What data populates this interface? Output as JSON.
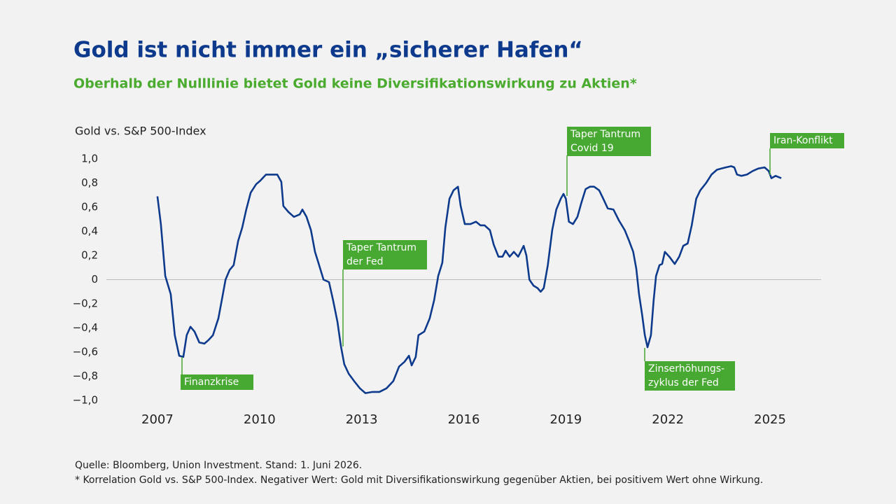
{
  "chart_data": {
    "type": "line",
    "title": "Gold ist nicht immer ein „sicherer Hafen“",
    "subtitle": "Oberhalb der Nulllinie bietet Gold keine Diversifikationswirkung zu Aktien*",
    "y_label": "Gold vs. S&P 500-Index",
    "color": "#0d3a8c",
    "zero_line": true,
    "xlim": [
      2005.5,
      2026.5
    ],
    "xticks": [
      2007,
      2010,
      2013,
      2016,
      2019,
      2022,
      2025
    ],
    "ylim": [
      -1.0,
      1.0
    ],
    "yticks": [
      {
        "value": 1.0,
        "label": "1,0"
      },
      {
        "value": 0.8,
        "label": "0,8"
      },
      {
        "value": 0.6,
        "label": "0,6"
      },
      {
        "value": 0.4,
        "label": "0,4"
      },
      {
        "value": 0.2,
        "label": "0,2"
      },
      0,
      {
        "value": -0.2,
        "label": "−0,2"
      },
      {
        "value": -0.4,
        "label": "−0,4"
      },
      {
        "value": -0.6,
        "label": "−0,6"
      },
      {
        "value": -0.8,
        "label": "−0,8"
      },
      {
        "value": -1.0,
        "label": "−1,0"
      }
    ],
    "x": [
      2007.0,
      2007.1,
      2007.23,
      2007.39,
      2007.51,
      2007.64,
      2007.76,
      2007.86,
      2007.97,
      2008.09,
      2008.23,
      2008.38,
      2008.5,
      2008.63,
      2008.79,
      2008.91,
      2009.0,
      2009.12,
      2009.24,
      2009.37,
      2009.49,
      2009.61,
      2009.74,
      2009.9,
      2010.02,
      2010.19,
      2010.35,
      2010.52,
      2010.64,
      2010.7,
      2010.85,
      2011.01,
      2011.18,
      2011.26,
      2011.38,
      2011.51,
      2011.63,
      2011.75,
      2011.88,
      2012.04,
      2012.16,
      2012.29,
      2012.39,
      2012.49,
      2012.62,
      2012.78,
      2012.95,
      2013.11,
      2013.32,
      2013.52,
      2013.73,
      2013.93,
      2014.1,
      2014.26,
      2014.39,
      2014.47,
      2014.59,
      2014.67,
      2014.84,
      2015.0,
      2015.13,
      2015.25,
      2015.37,
      2015.46,
      2015.58,
      2015.7,
      2015.83,
      2015.91,
      2016.03,
      2016.2,
      2016.36,
      2016.49,
      2016.61,
      2016.77,
      2016.88,
      2017.02,
      2017.14,
      2017.23,
      2017.35,
      2017.47,
      2017.6,
      2017.76,
      2017.84,
      2017.93,
      2018.05,
      2018.17,
      2018.26,
      2018.35,
      2018.47,
      2018.6,
      2018.72,
      2018.85,
      2018.93,
      2019.0,
      2019.09,
      2019.21,
      2019.34,
      2019.46,
      2019.58,
      2019.71,
      2019.83,
      2019.98,
      2020.1,
      2020.23,
      2020.4,
      2020.56,
      2020.73,
      2020.86,
      2020.98,
      2021.07,
      2021.15,
      2021.24,
      2021.32,
      2021.4,
      2021.5,
      2021.58,
      2021.65,
      2021.75,
      2021.83,
      2021.91,
      2022.04,
      2022.2,
      2022.33,
      2022.45,
      2022.58,
      2022.7,
      2022.83,
      2022.95,
      2023.12,
      2023.28,
      2023.44,
      2023.57,
      2023.7,
      2023.86,
      2023.95,
      2024.03,
      2024.16,
      2024.32,
      2024.49,
      2024.65,
      2024.84,
      2024.96,
      2025.04,
      2025.16,
      2025.33
    ],
    "values": [
      0.69,
      0.46,
      0.03,
      -0.12,
      -0.46,
      -0.63,
      -0.64,
      -0.46,
      -0.39,
      -0.43,
      -0.52,
      -0.53,
      -0.5,
      -0.46,
      -0.32,
      -0.14,
      0.0,
      0.08,
      0.12,
      0.32,
      0.43,
      0.58,
      0.72,
      0.79,
      0.82,
      0.87,
      0.87,
      0.87,
      0.81,
      0.61,
      0.56,
      0.52,
      0.54,
      0.58,
      0.52,
      0.41,
      0.23,
      0.12,
      0.0,
      -0.02,
      -0.17,
      -0.35,
      -0.55,
      -0.7,
      -0.78,
      -0.84,
      -0.9,
      -0.94,
      -0.93,
      -0.93,
      -0.9,
      -0.84,
      -0.72,
      -0.68,
      -0.63,
      -0.71,
      -0.64,
      -0.46,
      -0.43,
      -0.32,
      -0.17,
      0.03,
      0.14,
      0.43,
      0.67,
      0.74,
      0.77,
      0.61,
      0.46,
      0.46,
      0.48,
      0.45,
      0.45,
      0.41,
      0.29,
      0.19,
      0.19,
      0.24,
      0.19,
      0.23,
      0.19,
      0.28,
      0.2,
      0.0,
      -0.05,
      -0.07,
      -0.1,
      -0.07,
      0.12,
      0.41,
      0.58,
      0.67,
      0.71,
      0.67,
      0.48,
      0.46,
      0.52,
      0.64,
      0.75,
      0.77,
      0.77,
      0.74,
      0.67,
      0.59,
      0.58,
      0.49,
      0.41,
      0.32,
      0.23,
      0.09,
      -0.12,
      -0.29,
      -0.46,
      -0.56,
      -0.46,
      -0.17,
      0.03,
      0.12,
      0.13,
      0.23,
      0.19,
      0.13,
      0.19,
      0.28,
      0.3,
      0.45,
      0.67,
      0.74,
      0.8,
      0.87,
      0.91,
      0.92,
      0.93,
      0.94,
      0.93,
      0.87,
      0.86,
      0.87,
      0.9,
      0.92,
      0.93,
      0.9,
      0.84,
      0.86,
      0.84
    ],
    "annotations": [
      [
        "Finanzkrise"
      ],
      [
        "Taper Tantrum",
        "der Fed"
      ],
      [
        "Taper Tantrum",
        "Covid 19"
      ],
      [
        "Zinserhöhungs-",
        "zyklus der Fed"
      ],
      [
        "Iran-Konflikt"
      ]
    ],
    "source": "Quelle: Bloomberg, Union Investment. Stand: 1. Juni 2026.",
    "footnote": "* Korrelation Gold vs. S&P 500-Index. Negativer Wert: Gold mit Diversifikationswirkung gegenüber Aktien, bei positivem Wert ohne Wirkung."
  }
}
